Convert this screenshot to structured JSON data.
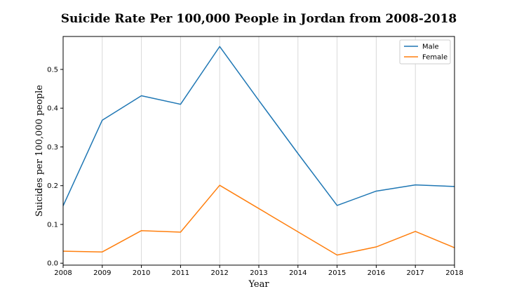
{
  "chart_data": {
    "type": "line",
    "title": "Suicide Rate Per 100,000 People in Jordan from 2008-2018",
    "xlabel": "Year",
    "ylabel": "Suicides per 100,000 people",
    "x": [
      2008,
      2009,
      2010,
      2011,
      2012,
      2013,
      2014,
      2015,
      2016,
      2017,
      2018
    ],
    "xlim": [
      2008,
      2018
    ],
    "ylim": [
      -0.005,
      0.585
    ],
    "yticks": [
      0.0,
      0.1,
      0.2,
      0.3,
      0.4,
      0.5
    ],
    "ytick_labels": [
      "0.0",
      "0.1",
      "0.2",
      "0.3",
      "0.4",
      "0.5"
    ],
    "xtick_labels": [
      "2008",
      "2009",
      "2010",
      "2011",
      "2012",
      "2013",
      "2014",
      "2015",
      "2016",
      "2017",
      "2018"
    ],
    "grid": "vertical",
    "legend_position": "top-right",
    "series": [
      {
        "name": "Male",
        "color": "#1f77b4",
        "values": [
          0.148,
          0.369,
          0.432,
          0.41,
          0.559,
          0.42,
          0.283,
          0.149,
          0.186,
          0.202,
          0.198
        ]
      },
      {
        "name": "Female",
        "color": "#ff7f0e",
        "values": [
          0.031,
          0.029,
          0.084,
          0.08,
          0.201,
          0.141,
          0.081,
          0.021,
          0.042,
          0.082,
          0.04
        ]
      }
    ]
  }
}
